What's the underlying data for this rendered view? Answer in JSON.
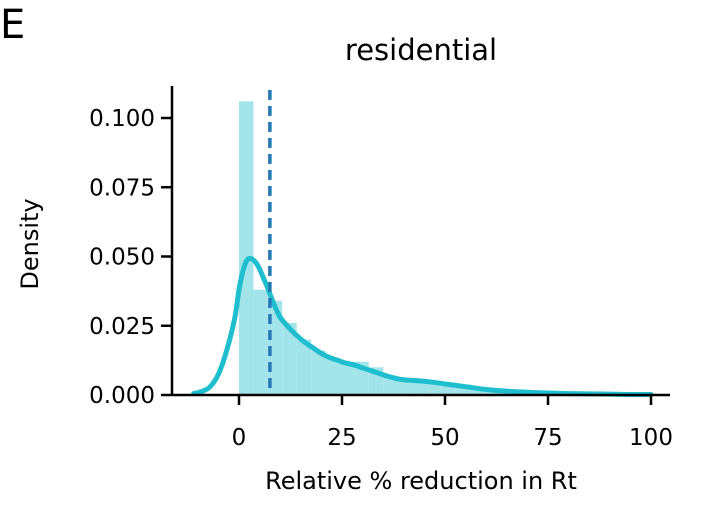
{
  "panel_label": "E",
  "chart_data": {
    "type": "histogram",
    "title": "residential",
    "xlabel": "Relative % reduction in Rt",
    "ylabel": "Density",
    "xlim": [
      -18,
      104
    ],
    "ylim": [
      0,
      0.111
    ],
    "x_ticks": [
      0,
      25,
      50,
      75,
      100
    ],
    "y_ticks": [
      0.0,
      0.025,
      0.05,
      0.075,
      0.1
    ],
    "y_tick_labels": [
      "0.000",
      "0.025",
      "0.050",
      "0.075",
      "0.100"
    ],
    "x_tick_labels": [
      "0",
      "25",
      "50",
      "75",
      "100"
    ],
    "grid": false,
    "legend": "none",
    "colors": {
      "histogram": "#a2e4e9",
      "kde": "#1fbecf",
      "median_line": "#2478b5",
      "axes": "#000000"
    },
    "histogram": {
      "bins": [
        {
          "x0": 0.0,
          "x1": 3.5,
          "density": 0.106
        },
        {
          "x0": 3.5,
          "x1": 7.0,
          "density": 0.038
        },
        {
          "x0": 7.0,
          "x1": 10.5,
          "density": 0.034
        },
        {
          "x0": 10.5,
          "x1": 14.0,
          "density": 0.026
        },
        {
          "x0": 14.0,
          "x1": 17.5,
          "density": 0.02
        },
        {
          "x0": 17.5,
          "x1": 21.0,
          "density": 0.016
        },
        {
          "x0": 21.0,
          "x1": 24.5,
          "density": 0.013
        },
        {
          "x0": 24.5,
          "x1": 28.0,
          "density": 0.012
        },
        {
          "x0": 28.0,
          "x1": 31.5,
          "density": 0.012
        },
        {
          "x0": 31.5,
          "x1": 35.0,
          "density": 0.01
        },
        {
          "x0": 35.0,
          "x1": 38.5,
          "density": 0.007
        },
        {
          "x0": 38.5,
          "x1": 42.0,
          "density": 0.006
        },
        {
          "x0": 42.0,
          "x1": 45.5,
          "density": 0.005
        },
        {
          "x0": 45.5,
          "x1": 49.0,
          "density": 0.004
        },
        {
          "x0": 49.0,
          "x1": 52.5,
          "density": 0.004
        },
        {
          "x0": 52.5,
          "x1": 56.0,
          "density": 0.003
        },
        {
          "x0": 56.0,
          "x1": 59.5,
          "density": 0.003
        },
        {
          "x0": 59.5,
          "x1": 63.0,
          "density": 0.002
        },
        {
          "x0": 63.0,
          "x1": 66.5,
          "density": 0.002
        },
        {
          "x0": 66.5,
          "x1": 70.0,
          "density": 0.002
        },
        {
          "x0": 70.0,
          "x1": 73.5,
          "density": 0.001
        },
        {
          "x0": 73.5,
          "x1": 77.0,
          "density": 0.001
        },
        {
          "x0": 77.0,
          "x1": 80.5,
          "density": 0.001
        },
        {
          "x0": 80.5,
          "x1": 84.0,
          "density": 0.0008
        },
        {
          "x0": 84.0,
          "x1": 87.5,
          "density": 0.0006
        },
        {
          "x0": 87.5,
          "x1": 91.0,
          "density": 0.0005
        },
        {
          "x0": 91.0,
          "x1": 94.5,
          "density": 0.0004
        },
        {
          "x0": 94.5,
          "x1": 98.0,
          "density": 0.0003
        },
        {
          "x0": 98.0,
          "x1": 100.0,
          "density": 0.0002
        }
      ]
    },
    "kde": {
      "x": [
        -11,
        -9,
        -7,
        -5,
        -3,
        -1,
        0,
        1,
        2,
        3,
        4,
        5,
        6,
        7,
        8,
        9,
        10,
        12,
        14,
        16,
        18,
        20,
        22,
        24,
        26,
        28,
        30,
        32,
        34,
        36,
        38,
        40,
        43,
        46,
        50,
        55,
        60,
        65,
        70,
        75,
        80,
        85,
        90,
        95,
        100
      ],
      "y": [
        0.0005,
        0.0013,
        0.003,
        0.0075,
        0.016,
        0.028,
        0.038,
        0.045,
        0.0488,
        0.0492,
        0.048,
        0.0455,
        0.042,
        0.0385,
        0.0345,
        0.031,
        0.028,
        0.0245,
        0.0215,
        0.019,
        0.017,
        0.015,
        0.0135,
        0.0125,
        0.0115,
        0.0108,
        0.0098,
        0.0088,
        0.0078,
        0.0068,
        0.006,
        0.0055,
        0.0052,
        0.0048,
        0.004,
        0.003,
        0.002,
        0.0014,
        0.001,
        0.0007,
        0.0005,
        0.0004,
        0.0003,
        0.0002,
        0.0002
      ]
    },
    "median_line": {
      "x": 7.5,
      "style": "dashed"
    }
  }
}
